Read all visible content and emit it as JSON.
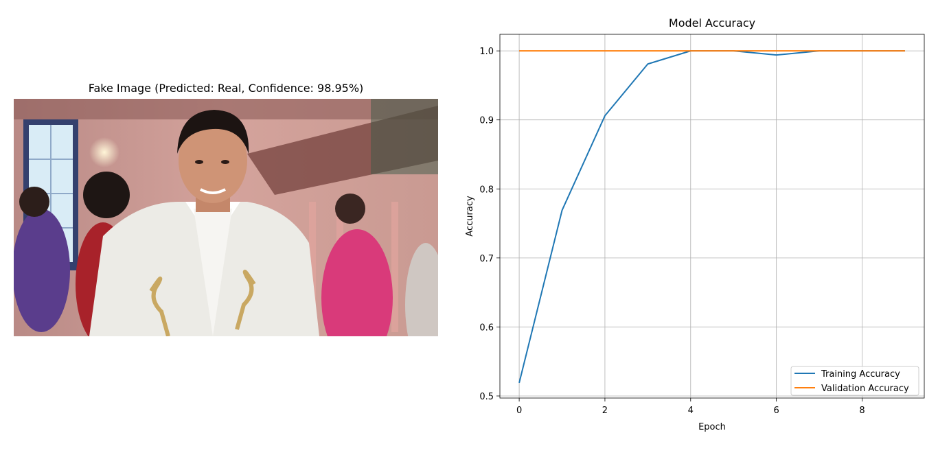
{
  "image_panel": {
    "title": "Fake Image (Predicted: Real, Confidence: 98.95%)"
  },
  "chart_data": {
    "type": "line",
    "title": "Model Accuracy",
    "xlabel": "Epoch",
    "ylabel": "Accuracy",
    "xlim": [
      -0.45,
      9.45
    ],
    "ylim": [
      0.497,
      1.024
    ],
    "xticks": [
      0,
      2,
      4,
      6,
      8
    ],
    "yticks": [
      0.5,
      0.6,
      0.7,
      0.8,
      0.9,
      1.0
    ],
    "ytick_labels": [
      "0.5",
      "0.6",
      "0.7",
      "0.8",
      "0.9",
      "1.0"
    ],
    "grid": true,
    "legend_position": "bottom-right",
    "x": [
      0,
      1,
      2,
      3,
      4,
      5,
      6,
      7,
      8,
      9
    ],
    "series": [
      {
        "name": "Training Accuracy",
        "color": "#1f77b4",
        "values": [
          0.519,
          0.769,
          0.906,
          0.981,
          1.0,
          1.0,
          0.994,
          1.0,
          1.0,
          1.0
        ]
      },
      {
        "name": "Validation Accuracy",
        "color": "#ff7f0e",
        "values": [
          1.0,
          1.0,
          1.0,
          1.0,
          1.0,
          1.0,
          1.0,
          1.0,
          1.0,
          1.0
        ]
      }
    ]
  }
}
